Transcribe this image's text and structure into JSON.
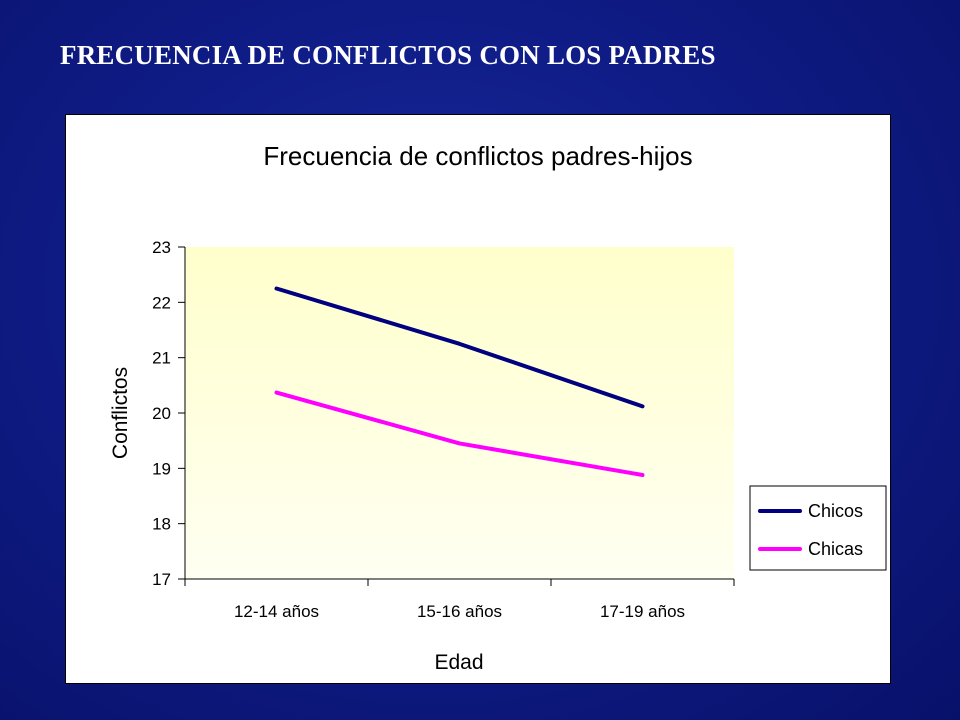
{
  "slide": {
    "title": "FRECUENCIA DE CONFLICTOS CON LOS PADRES"
  },
  "chart_data": {
    "type": "line",
    "title": "Frecuencia de conflictos padres-hijos",
    "xlabel": "Edad",
    "ylabel": "Conflictos",
    "categories": [
      "12-14 años",
      "15-16 años",
      "17-19 años"
    ],
    "ylim": [
      17,
      23
    ],
    "yticks": [
      17,
      18,
      19,
      20,
      21,
      22,
      23
    ],
    "grid": false,
    "legend_position": "right",
    "plot_background": [
      "#ffffcc",
      "#fffff2"
    ],
    "series": [
      {
        "name": "Chicos",
        "values": [
          22.25,
          21.25,
          20.12
        ],
        "color": "#000080"
      },
      {
        "name": "Chicas",
        "values": [
          20.37,
          19.45,
          18.88
        ],
        "color": "#ff00ff"
      }
    ]
  }
}
